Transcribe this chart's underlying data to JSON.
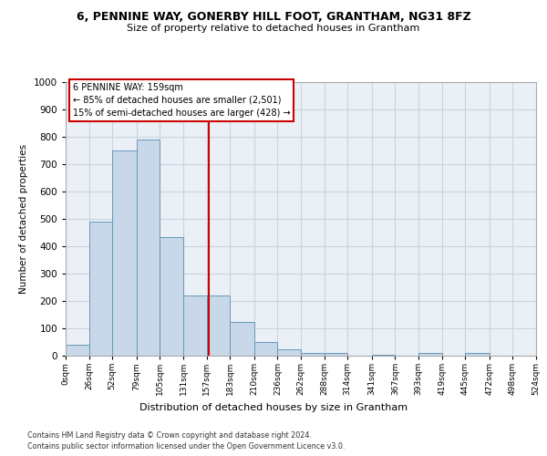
{
  "title1": "6, PENNINE WAY, GONERBY HILL FOOT, GRANTHAM, NG31 8FZ",
  "title2": "Size of property relative to detached houses in Grantham",
  "xlabel": "Distribution of detached houses by size in Grantham",
  "ylabel": "Number of detached properties",
  "bar_color": "#c8d8e8",
  "bar_edge_color": "#6699bb",
  "bin_edges": [
    0,
    26,
    52,
    79,
    105,
    131,
    157,
    183,
    210,
    236,
    262,
    288,
    314,
    341,
    367,
    393,
    419,
    445,
    472,
    498,
    524
  ],
  "bin_labels": [
    "0sqm",
    "26sqm",
    "52sqm",
    "79sqm",
    "105sqm",
    "131sqm",
    "157sqm",
    "183sqm",
    "210sqm",
    "236sqm",
    "262sqm",
    "288sqm",
    "314sqm",
    "341sqm",
    "367sqm",
    "393sqm",
    "419sqm",
    "445sqm",
    "472sqm",
    "498sqm",
    "524sqm"
  ],
  "counts": [
    40,
    490,
    750,
    790,
    435,
    220,
    220,
    125,
    50,
    25,
    10,
    10,
    0,
    5,
    0,
    10,
    0,
    10,
    0,
    0
  ],
  "property_size": 159,
  "vline_color": "#cc0000",
  "annotation_text": "6 PENNINE WAY: 159sqm\n← 85% of detached houses are smaller (2,501)\n15% of semi-detached houses are larger (428) →",
  "annotation_box_color": "#ffffff",
  "annotation_box_edge_color": "#cc0000",
  "footnote1": "Contains HM Land Registry data © Crown copyright and database right 2024.",
  "footnote2": "Contains public sector information licensed under the Open Government Licence v3.0.",
  "ylim": [
    0,
    1000
  ],
  "grid_color": "#c8d4e0",
  "background_color": "#eaf0f6"
}
